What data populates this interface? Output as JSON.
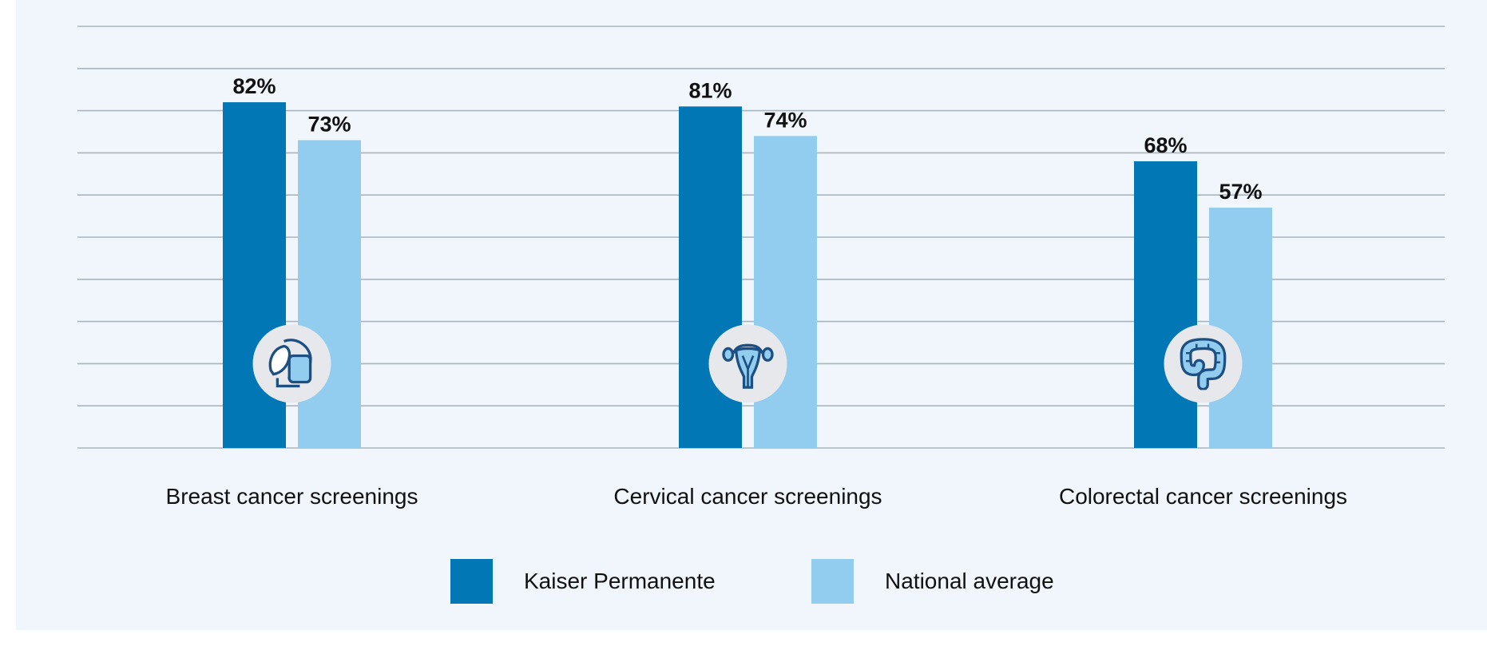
{
  "chart_data": {
    "type": "bar",
    "categories": [
      "Breast cancer screenings",
      "Cervical cancer screenings",
      "Colorectal cancer screenings"
    ],
    "category_icons": [
      "breast-icon",
      "uterus-icon",
      "colon-icon"
    ],
    "series": [
      {
        "name": "Kaiser Permanente",
        "values": [
          82,
          81,
          68
        ],
        "color": "#0277b5"
      },
      {
        "name": "National average",
        "values": [
          73,
          74,
          57
        ],
        "color": "#92cdf0"
      }
    ],
    "value_suffix": "%",
    "ylim": [
      0,
      100
    ],
    "grid": true,
    "legend_position": "bottom-center",
    "title": "",
    "xlabel": "",
    "ylabel": ""
  }
}
